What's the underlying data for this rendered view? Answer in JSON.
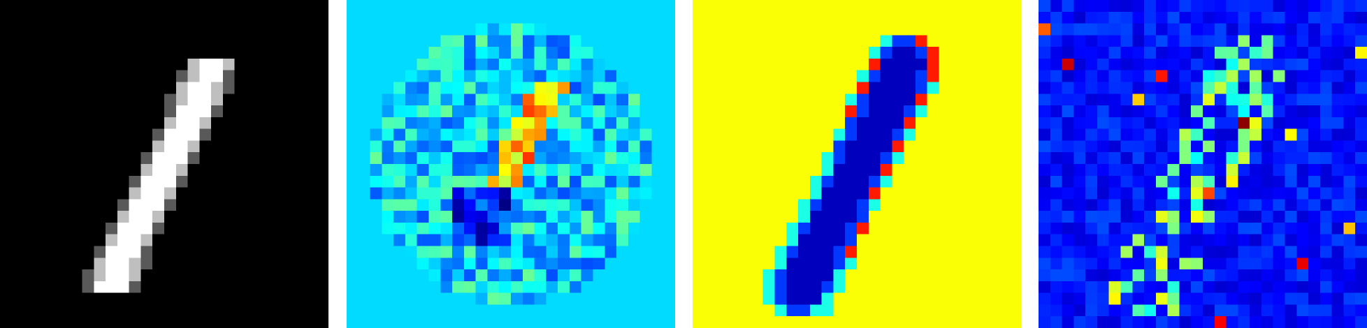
{
  "panels": [
    {
      "id": "input-digit-image",
      "colormap": "gray",
      "background": "#000000"
    },
    {
      "id": "heatmap-jet-a",
      "colormap": "jet",
      "background": "#00c8ff"
    },
    {
      "id": "heatmap-jet-b",
      "colormap": "jet",
      "background": "#9cff5c"
    },
    {
      "id": "heatmap-jet-c",
      "colormap": "jet",
      "background": "#0000a8"
    }
  ],
  "colors": {
    "page_background": "#ffffff",
    "jet_dark_blue": "#00008f",
    "jet_blue": "#0000ff",
    "jet_cyan": "#00ffff",
    "jet_yellow": "#ffff00",
    "jet_red": "#ff0000",
    "jet_dark_red": "#800000"
  }
}
